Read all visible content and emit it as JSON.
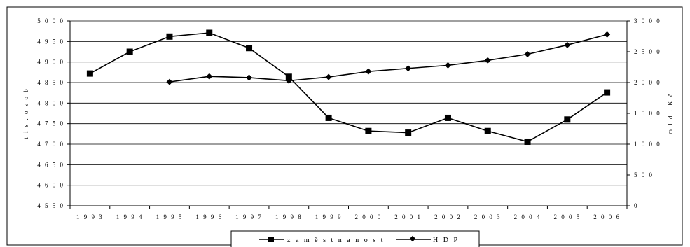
{
  "chart_data": {
    "type": "line",
    "categories": [
      "1993",
      "1994",
      "1995",
      "1996",
      "1997",
      "1998",
      "1999",
      "2000",
      "2001",
      "2002",
      "2003",
      "2004",
      "2005",
      "2006"
    ],
    "y_left": {
      "label": "tis. osob",
      "ylim": [
        4550,
        5000
      ],
      "ticks": [
        4550,
        4600,
        4650,
        4700,
        4750,
        4800,
        4850,
        4900,
        4950,
        5000
      ]
    },
    "y_right": {
      "label": "mld. Kč",
      "ylim": [
        0,
        3000
      ],
      "ticks": [
        0,
        500,
        1000,
        1500,
        2000,
        2500,
        3000
      ]
    },
    "series": [
      {
        "name": "zaměstnanost",
        "axis": "left",
        "marker": "square",
        "values": [
          4872,
          4925,
          4962,
          4971,
          4934,
          4864,
          4764,
          4732,
          4728,
          4764,
          4732,
          4706,
          4760,
          4826
        ]
      },
      {
        "name": "HDP",
        "axis": "right",
        "marker": "diamond",
        "values": [
          null,
          null,
          2010,
          2100,
          2080,
          2030,
          2090,
          2180,
          2230,
          2280,
          2360,
          2460,
          2610,
          2780
        ]
      }
    ],
    "grid": true,
    "legend_placement": "bottom-center",
    "colors": {
      "line": "#000000",
      "grid": "#000000",
      "background": "#ffffff"
    }
  }
}
